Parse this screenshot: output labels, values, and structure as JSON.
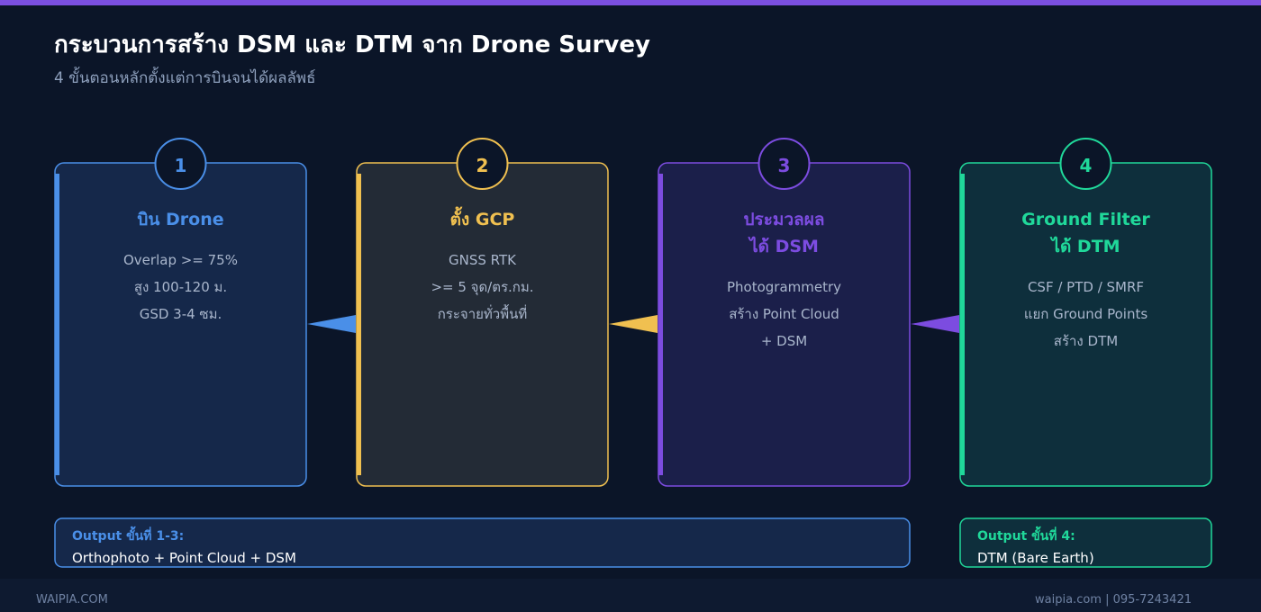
{
  "header": {
    "title": "กระบวนการสร้าง DSM และ DTM จาก Drone Survey",
    "subtitle": "4 ขั้นตอนหลักตั้งแต่การบินจนได้ผลลัพธ์"
  },
  "steps": [
    {
      "number": "1",
      "title": [
        "บิน Drone"
      ],
      "lines": [
        "Overlap >= 75%",
        "สูง 100-120 ม.",
        "GSD 3-4 ซม."
      ]
    },
    {
      "number": "2",
      "title": [
        "ตั้ง GCP"
      ],
      "lines": [
        "GNSS RTK",
        ">= 5 จุด/ตร.กม.",
        "กระจายทั่วพื้นที่"
      ]
    },
    {
      "number": "3",
      "title": [
        "ประมวลผล",
        "ได้ DSM"
      ],
      "lines": [
        "Photogrammetry",
        "สร้าง Point Cloud",
        "+ DSM"
      ]
    },
    {
      "number": "4",
      "title": [
        "Ground Filter",
        "ได้ DTM"
      ],
      "lines": [
        "CSF / PTD / SMRF",
        "แยก Ground Points",
        "สร้าง DTM"
      ]
    }
  ],
  "outputs": [
    {
      "label": "Output ขั้นที่ 1-3:",
      "text": "Orthophoto + Point Cloud + DSM"
    },
    {
      "label": "Output ขั้นที่ 4:",
      "text": "DTM (Bare Earth)"
    }
  ],
  "footer": {
    "left": "WAIPIA.COM",
    "right": "waipia.com | 095-7243421"
  }
}
